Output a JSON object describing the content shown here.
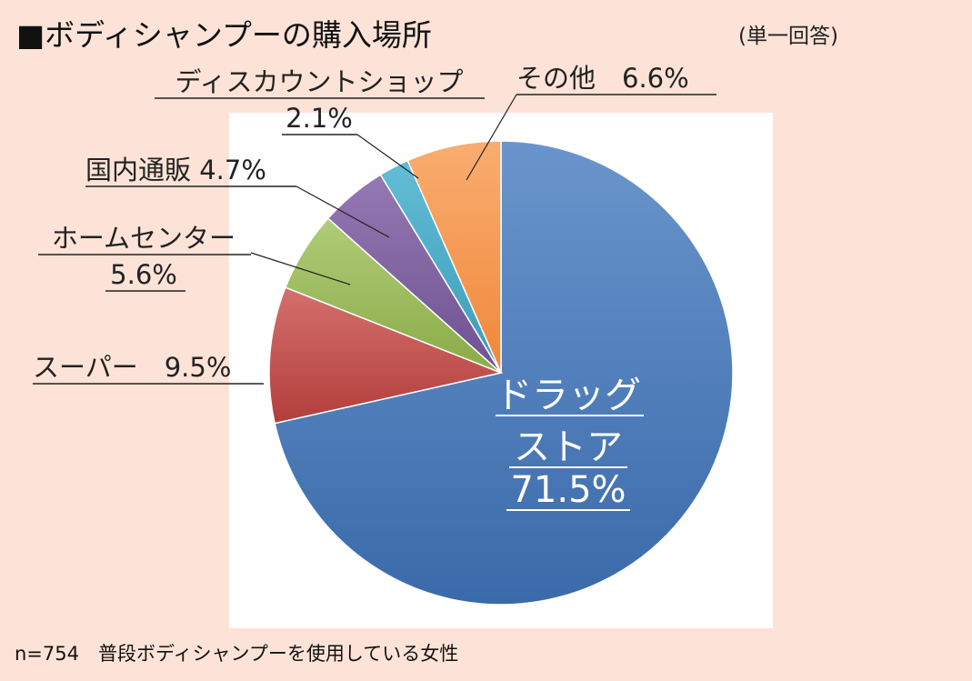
{
  "header": {
    "title": "■ボディシャンプーの購入場所",
    "subtitle": "(単一回答)"
  },
  "footnote": "n=754　普段ボディシャンプーを使用している女性",
  "chart_data": {
    "type": "pie",
    "title": "■ボディシャンプーの購入場所",
    "start_angle_deg": 0,
    "direction": "clockwise",
    "slices": [
      {
        "label": "ドラッグストア",
        "value": 71.5,
        "display": [
          "ドラッグ",
          "ストア",
          "71.5%"
        ],
        "color": "#4a7ebb"
      },
      {
        "label": "スーパー",
        "value": 9.5,
        "display": [
          "スーパー　9.5%"
        ],
        "color": "#be4b48"
      },
      {
        "label": "ホームセンター",
        "value": 5.6,
        "display": [
          "ホームセンター",
          "5.6%"
        ],
        "color": "#98b954"
      },
      {
        "label": "国内通販",
        "value": 4.7,
        "display": [
          "国内通販 4.7%"
        ],
        "color": "#7d5fa0"
      },
      {
        "label": "ディスカウントショップ",
        "value": 2.1,
        "display": [
          "ディスカウントショップ",
          "2.1%"
        ],
        "color": "#46aac5"
      },
      {
        "label": "その他",
        "value": 6.6,
        "display": [
          "その他　6.6%"
        ],
        "color": "#f79646"
      }
    ]
  }
}
